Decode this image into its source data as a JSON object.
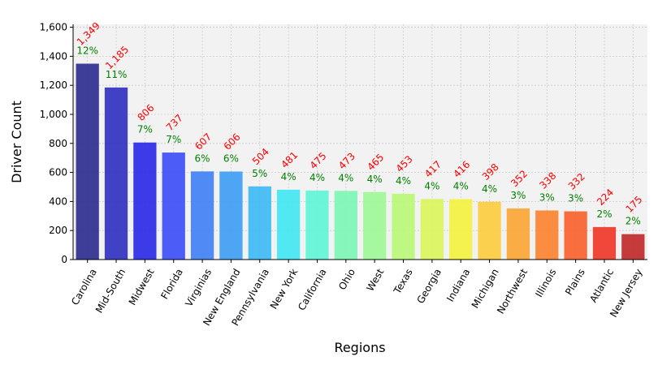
{
  "chart_data": {
    "type": "bar",
    "title": "",
    "xlabel": "Regions",
    "ylabel": "Driver Count",
    "categories": [
      "Carolina",
      "Mid-South",
      "Midwest",
      "Florida",
      "Virginias",
      "New England",
      "Pennsylvania",
      "New York",
      "California",
      "Ohio",
      "West",
      "Texas",
      "Georgia",
      "Indiana",
      "Michigan",
      "Northwest",
      "Illinois",
      "Plains",
      "Atlantic",
      "New Jersey"
    ],
    "values": [
      1349,
      1185,
      806,
      737,
      607,
      606,
      504,
      481,
      475,
      473,
      465,
      453,
      417,
      416,
      398,
      352,
      338,
      332,
      224,
      175
    ],
    "value_labels": [
      "1,349",
      "1,185",
      "806",
      "737",
      "607",
      "606",
      "504",
      "481",
      "475",
      "473",
      "465",
      "453",
      "417",
      "416",
      "398",
      "352",
      "338",
      "332",
      "224",
      "175"
    ],
    "percent_labels": [
      "12%",
      "11%",
      "7%",
      "7%",
      "6%",
      "6%",
      "5%",
      "4%",
      "4%",
      "4%",
      "4%",
      "4%",
      "4%",
      "4%",
      "4%",
      "3%",
      "3%",
      "3%",
      "2%",
      "2%"
    ],
    "bar_colors": [
      "#2a2a8f",
      "#2e2ec0",
      "#2727e6",
      "#3a4cf7",
      "#3d7ef5",
      "#3b9cf3",
      "#3bb9f5",
      "#3fe6f3",
      "#5df5d6",
      "#7af6b4",
      "#9cf895",
      "#b8f875",
      "#d9f55a",
      "#f4f23c",
      "#fccc3c",
      "#fca532",
      "#fb822b",
      "#f95f2a",
      "#ee3526",
      "#c02727"
    ],
    "ylim": [
      0,
      1620
    ],
    "yticks": [
      0,
      200,
      400,
      600,
      800,
      1000,
      1200,
      1400,
      1600
    ],
    "ytick_labels": [
      "0",
      "200",
      "400",
      "600",
      "800",
      "1,000",
      "1,200",
      "1,400",
      "1,600"
    ],
    "grid": true,
    "plot_background": "#f2f2f2",
    "value_label_color": "#ff0000",
    "percent_label_color": "#008000"
  }
}
